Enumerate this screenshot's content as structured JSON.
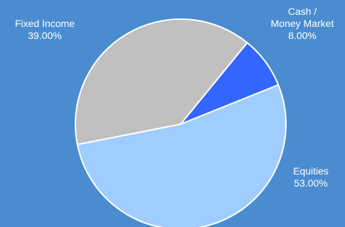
{
  "colors": {
    "background": "#4a8ccf",
    "slice_stroke": "#ffffff",
    "label_text": "#ffffff"
  },
  "chart_data": {
    "type": "pie",
    "title": "",
    "slices": [
      {
        "label_lines": [
          "Equities"
        ],
        "value": 53.0,
        "value_label": "53.00%",
        "color": "#9fcdff"
      },
      {
        "label_lines": [
          "Fixed Income"
        ],
        "value": 39.0,
        "value_label": "39.00%",
        "color": "#c0c0c0"
      },
      {
        "label_lines": [
          "Cash /",
          "Money Market"
        ],
        "value": 8.0,
        "value_label": "8.00%",
        "color": "#3366ff"
      }
    ],
    "start_angle_deg": 68,
    "direction": "clockwise",
    "legend": "none",
    "data_labels": "outside"
  }
}
